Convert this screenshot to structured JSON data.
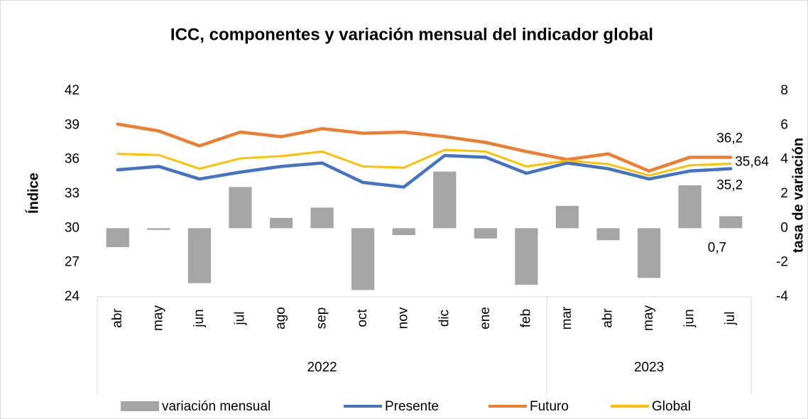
{
  "chart_data": {
    "type": "combo",
    "title": "ICC, componentes y variación mensual del indicador global",
    "ylabel": "Índice",
    "y2label": "tasa de variación",
    "categories": [
      "abr",
      "may",
      "jun",
      "jul",
      "ago",
      "sep",
      "oct",
      "nov",
      "dic",
      "ene",
      "feb",
      "mar",
      "abr",
      "may",
      "jun",
      "jul"
    ],
    "years": [
      "2022",
      null,
      null,
      null,
      null,
      null,
      null,
      null,
      null,
      null,
      null,
      "2023",
      null,
      null,
      null,
      null
    ],
    "ylim": [
      24,
      42
    ],
    "yticks": [
      24,
      27,
      30,
      33,
      36,
      39,
      42
    ],
    "y2lim": [
      -4,
      8
    ],
    "y2ticks": [
      -4,
      -2,
      0,
      2,
      4,
      6,
      8
    ],
    "series": [
      {
        "name": "variación mensual",
        "type": "bar",
        "axis": "y2",
        "color": "#a5a5a5",
        "values": [
          -1.1,
          -0.1,
          -3.2,
          2.4,
          0.6,
          1.2,
          -3.6,
          -0.4,
          3.3,
          -0.6,
          -3.3,
          1.3,
          -0.7,
          -2.9,
          2.5,
          0.7
        ],
        "value_labels": [
          null,
          null,
          null,
          null,
          null,
          null,
          null,
          null,
          null,
          null,
          null,
          null,
          null,
          null,
          null,
          "0,7"
        ]
      },
      {
        "name": "Presente",
        "type": "line",
        "color": "#4472c4",
        "values": [
          35.1,
          35.4,
          34.3,
          34.9,
          35.4,
          35.7,
          34.0,
          33.6,
          36.35,
          36.2,
          34.8,
          35.7,
          35.2,
          34.3,
          35.0,
          35.2
        ],
        "value_labels": [
          null,
          null,
          null,
          null,
          null,
          null,
          null,
          null,
          null,
          null,
          null,
          null,
          null,
          null,
          null,
          "35,2"
        ]
      },
      {
        "name": "Futuro",
        "type": "line",
        "color": "#ed7d31",
        "values": [
          39.1,
          38.5,
          37.2,
          38.4,
          38.0,
          38.7,
          38.3,
          38.4,
          38.0,
          37.5,
          36.7,
          36.0,
          36.5,
          35.0,
          36.2,
          36.2
        ],
        "value_labels": [
          null,
          null,
          null,
          null,
          null,
          null,
          null,
          null,
          null,
          null,
          null,
          null,
          null,
          null,
          null,
          "36,2"
        ]
      },
      {
        "name": "Global",
        "type": "line",
        "color": "#ffc000",
        "values": [
          36.5,
          36.4,
          35.2,
          36.1,
          36.3,
          36.7,
          35.4,
          35.3,
          36.85,
          36.7,
          35.4,
          35.9,
          35.6,
          34.6,
          35.5,
          35.64
        ],
        "value_labels": [
          null,
          null,
          null,
          null,
          null,
          null,
          null,
          null,
          null,
          null,
          null,
          null,
          null,
          null,
          null,
          "35,64"
        ]
      }
    ]
  }
}
